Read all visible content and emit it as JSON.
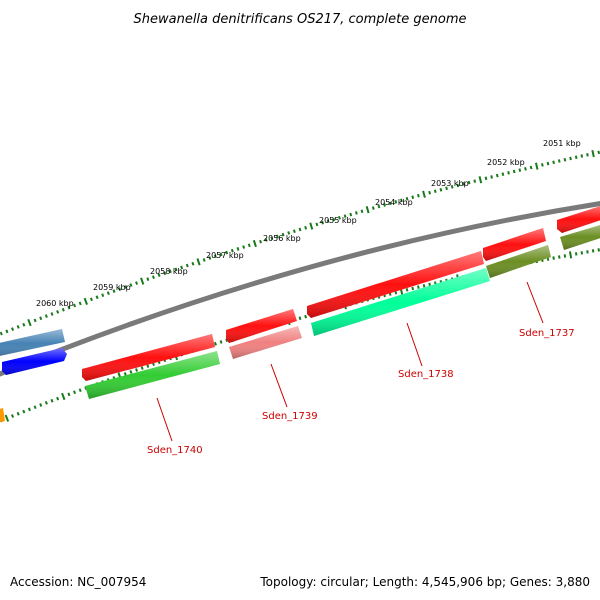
{
  "title": "Shewanella denitrificans OS217, complete genome",
  "footer": {
    "accession": "Accession: NC_007954",
    "topology": "Topology: circular; Length: 4,545,906 bp; Genes: 3,880"
  },
  "ticks": [
    "2051 kbp",
    "2052 kbp",
    "2053 kbp",
    "2054 kbp",
    "2055 kbp",
    "2056 kbp",
    "2057 kbp",
    "2058 kbp",
    "2059 kbp",
    "2060 kbp"
  ],
  "gene_labels": [
    "Sden_1737",
    "Sden_1738",
    "Sden_1739",
    "Sden_1740"
  ],
  "colors": {
    "backbone": "#808080",
    "red": "#ff1010",
    "pink": "#f08080",
    "green": "#33cc33",
    "spring": "#00ff99",
    "olive": "#6b8e23",
    "steel": "#4682b4",
    "blue": "#0000ff",
    "orange": "#ff9900",
    "tick": "#1a7a1a",
    "label": "#cc0000"
  }
}
